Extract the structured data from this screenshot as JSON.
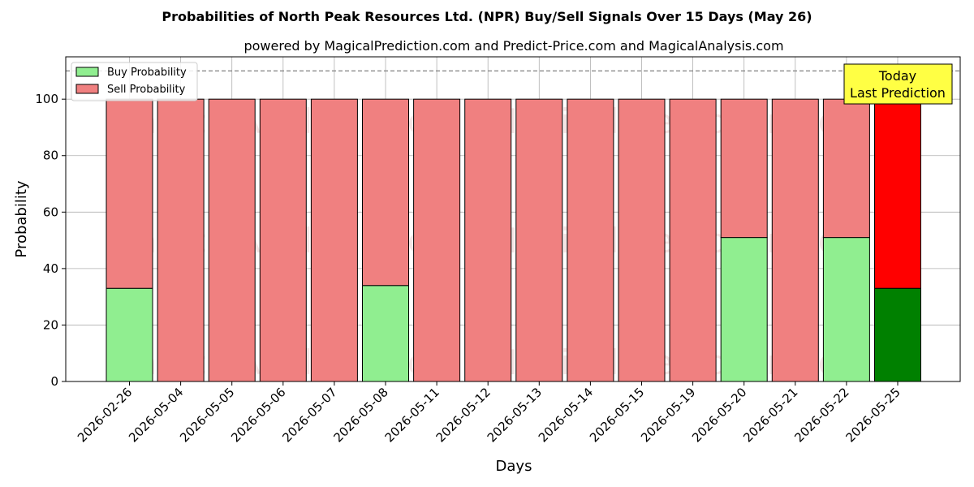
{
  "chart_data": {
    "type": "bar",
    "stacked": true,
    "title": "Probabilities of North Peak Resources Ltd. (NPR) Buy/Sell Signals Over 15 Days (May 26)",
    "subtitle": "powered by MagicalPrediction.com and Predict-Price.com and MagicalAnalysis.com",
    "xlabel": "Days",
    "ylabel": "Probability",
    "ylim": [
      0,
      115
    ],
    "yticks": [
      0,
      20,
      40,
      60,
      80,
      100
    ],
    "grid": true,
    "legend_position": "top-left",
    "categories": [
      "2026-02-26",
      "2026-05-04",
      "2026-05-05",
      "2026-05-06",
      "2026-05-07",
      "2026-05-08",
      "2026-05-11",
      "2026-05-12",
      "2026-05-13",
      "2026-05-14",
      "2026-05-15",
      "2026-05-19",
      "2026-05-20",
      "2026-05-21",
      "2026-05-22",
      "2026-05-25"
    ],
    "series": [
      {
        "name": "Buy Probability",
        "color": "#90ee90",
        "highlight_color": "#008000",
        "values": [
          33,
          0,
          0,
          0,
          0,
          34,
          0,
          0,
          0,
          0,
          0,
          0,
          51,
          0,
          51,
          33
        ]
      },
      {
        "name": "Sell Probability",
        "color": "#f08080",
        "highlight_color": "#ff0000",
        "values": [
          67,
          100,
          100,
          100,
          100,
          66,
          100,
          100,
          100,
          100,
          100,
          100,
          49,
          100,
          49,
          67
        ]
      }
    ],
    "highlight_index": 15,
    "reference_line": {
      "y": 110,
      "style": "dashed",
      "color": "#808080"
    },
    "annotation": {
      "lines": [
        "Today",
        "Last Prediction"
      ],
      "background": "#ffff44"
    },
    "watermarks": [
      "MagicalAnalysis.com",
      "MagicalPrediction.com"
    ]
  }
}
